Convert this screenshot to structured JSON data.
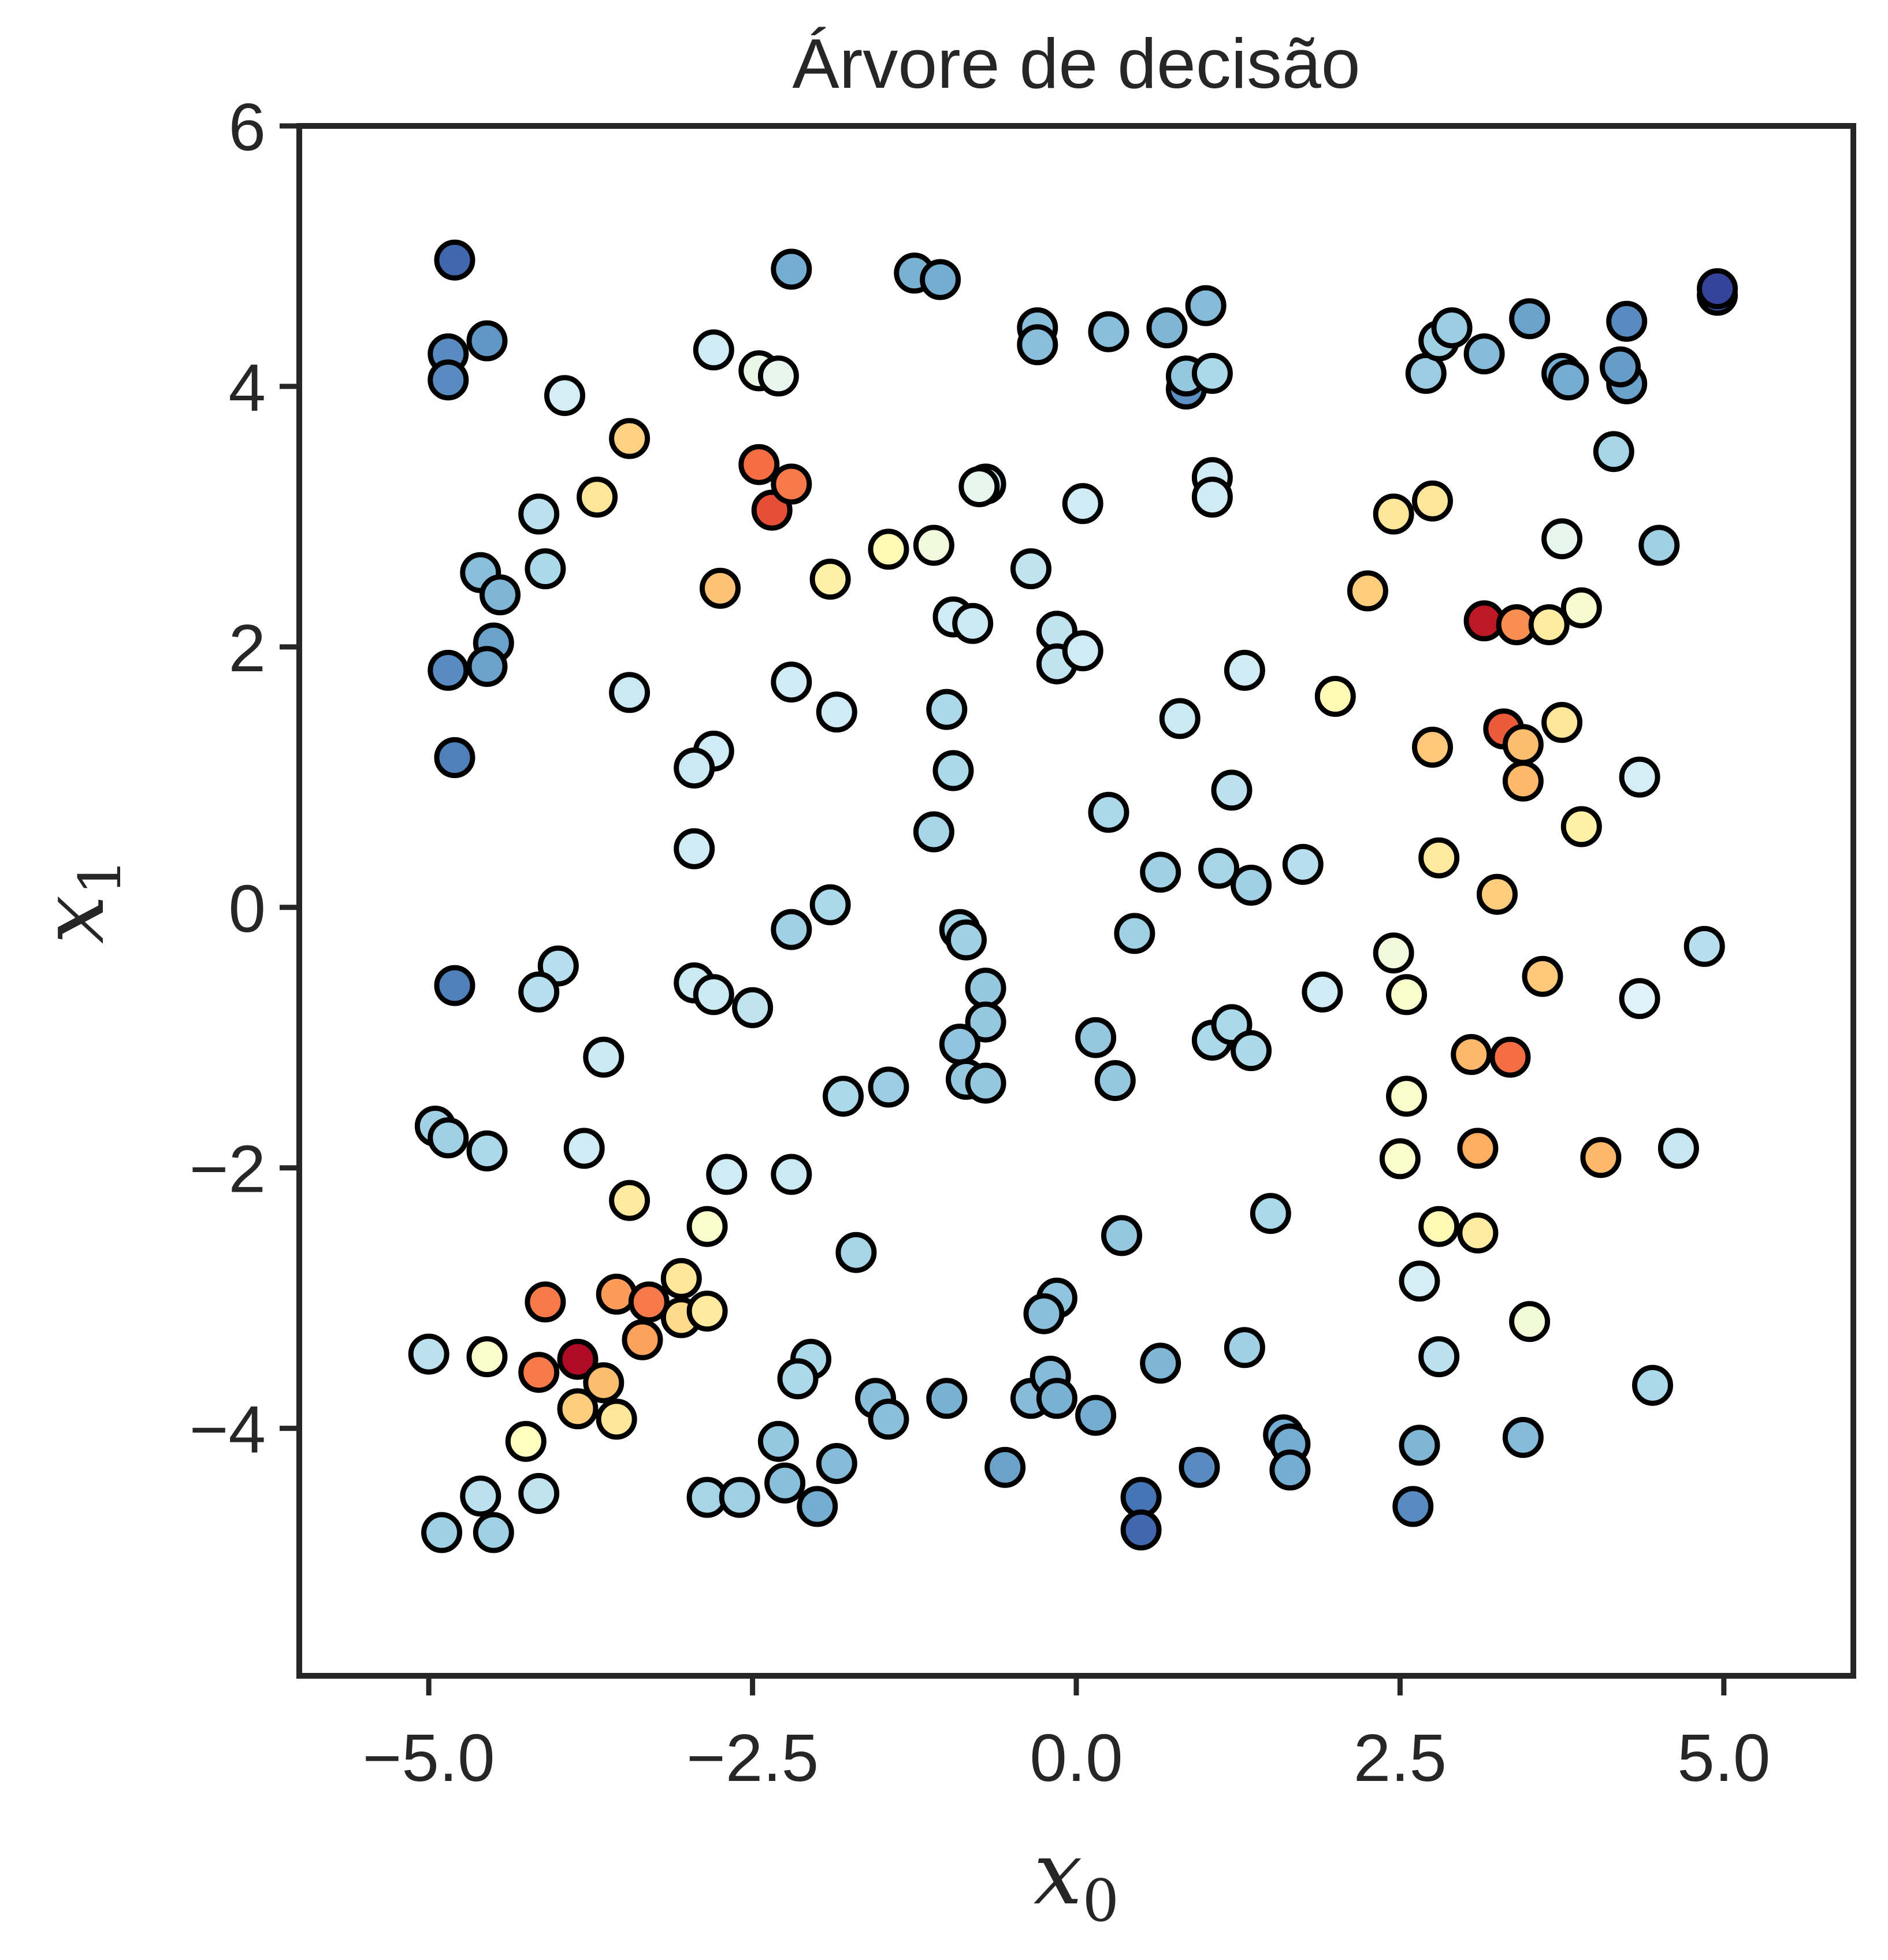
{
  "chart_data": {
    "type": "scatter",
    "title": "Árvore de decisão",
    "xlabel": "x",
    "xlabel_sub": "0",
    "ylabel": "x",
    "ylabel_sub": "1",
    "xlim": [
      -6,
      6
    ],
    "ylim": [
      -5.9,
      6
    ],
    "xticks": [
      -5.0,
      -2.5,
      0.0,
      2.5,
      5.0
    ],
    "yticks": [
      -4,
      -2,
      0,
      2,
      4,
      6
    ],
    "xtick_labels": [
      "−5.0",
      "−2.5",
      "0.0",
      "2.5",
      "5.0"
    ],
    "ytick_labels": [
      "−4",
      "−2",
      "0",
      "2",
      "4",
      "6"
    ],
    "grid": false,
    "colormap": "RdYlBu",
    "colormap_range": [
      0,
      1
    ],
    "colormap_stops": [
      "#a50026",
      "#d73027",
      "#f46d43",
      "#fdae61",
      "#fee090",
      "#ffffbf",
      "#e0f3f8",
      "#abd9e9",
      "#74add1",
      "#4575b4",
      "#313695"
    ],
    "marker_edge_color": "#000000",
    "points": [
      [
        -4.8,
        4.97,
        0.92
      ],
      [
        -4.85,
        4.25,
        0.86
      ],
      [
        -4.55,
        4.35,
        0.84
      ],
      [
        -4.85,
        4.05,
        0.86
      ],
      [
        -3.95,
        3.93,
        0.62
      ],
      [
        -3.45,
        3.6,
        0.37
      ],
      [
        -3.7,
        3.15,
        0.42
      ],
      [
        -4.15,
        3.02,
        0.67
      ],
      [
        -4.6,
        2.57,
        0.76
      ],
      [
        -4.45,
        2.4,
        0.78
      ],
      [
        -4.1,
        2.6,
        0.7
      ],
      [
        -4.5,
        2.03,
        0.82
      ],
      [
        -4.55,
        1.85,
        0.82
      ],
      [
        -4.85,
        1.82,
        0.86
      ],
      [
        -4.8,
        1.15,
        0.88
      ],
      [
        -3.45,
        1.65,
        0.64
      ],
      [
        -2.8,
        4.28,
        0.63
      ],
      [
        -2.45,
        4.12,
        0.57
      ],
      [
        -2.3,
        4.08,
        0.58
      ],
      [
        -2.2,
        4.9,
        0.8
      ],
      [
        -2.45,
        3.4,
        0.2
      ],
      [
        -2.35,
        3.05,
        0.15
      ],
      [
        -2.2,
        3.25,
        0.22
      ],
      [
        -2.75,
        2.45,
        0.34
      ],
      [
        -1.9,
        2.52,
        0.45
      ],
      [
        -1.45,
        2.75,
        0.48
      ],
      [
        -1.1,
        2.78,
        0.55
      ],
      [
        -2.2,
        1.73,
        0.63
      ],
      [
        -1.85,
        1.5,
        0.63
      ],
      [
        -2.8,
        1.2,
        0.63
      ],
      [
        -2.95,
        1.07,
        0.64
      ],
      [
        -2.95,
        0.45,
        0.63
      ],
      [
        -1.25,
        4.87,
        0.79
      ],
      [
        -1.05,
        4.82,
        0.8
      ],
      [
        -0.7,
        3.25,
        0.64
      ],
      [
        -0.75,
        3.23,
        0.58
      ],
      [
        -0.95,
        2.23,
        0.63
      ],
      [
        -0.8,
        2.18,
        0.64
      ],
      [
        -1.0,
        1.52,
        0.7
      ],
      [
        -0.95,
        1.05,
        0.7
      ],
      [
        -1.1,
        0.58,
        0.71
      ],
      [
        -0.3,
        4.45,
        0.76
      ],
      [
        -0.3,
        4.32,
        0.76
      ],
      [
        0.25,
        4.42,
        0.76
      ],
      [
        0.7,
        4.45,
        0.78
      ],
      [
        1.0,
        4.62,
        0.77
      ],
      [
        0.85,
        3.98,
        0.85
      ],
      [
        0.85,
        4.08,
        0.74
      ],
      [
        1.05,
        4.1,
        0.7
      ],
      [
        1.05,
        3.3,
        0.63
      ],
      [
        1.05,
        3.15,
        0.63
      ],
      [
        0.05,
        3.1,
        0.63
      ],
      [
        -0.35,
        2.6,
        0.66
      ],
      [
        -0.15,
        2.12,
        0.66
      ],
      [
        -0.15,
        1.87,
        0.66
      ],
      [
        0.05,
        1.97,
        0.63
      ],
      [
        0.8,
        1.45,
        0.64
      ],
      [
        1.3,
        1.82,
        0.63
      ],
      [
        1.2,
        0.9,
        0.67
      ],
      [
        0.25,
        0.73,
        0.7
      ],
      [
        0.65,
        0.27,
        0.72
      ],
      [
        1.1,
        0.3,
        0.71
      ],
      [
        1.35,
        0.17,
        0.72
      ],
      [
        1.75,
        0.33,
        0.68
      ],
      [
        -1.9,
        0.02,
        0.7
      ],
      [
        -2.2,
        -0.17,
        0.72
      ],
      [
        -0.9,
        -0.17,
        0.72
      ],
      [
        -0.85,
        -0.25,
        0.72
      ],
      [
        -0.7,
        -0.62,
        0.74
      ],
      [
        -0.7,
        -0.88,
        0.74
      ],
      [
        -0.9,
        -1.05,
        0.75
      ],
      [
        -0.85,
        -1.32,
        0.74
      ],
      [
        -0.7,
        -1.35,
        0.74
      ],
      [
        -2.95,
        -0.58,
        0.64
      ],
      [
        -2.8,
        -0.67,
        0.64
      ],
      [
        -2.5,
        -0.77,
        0.66
      ],
      [
        -1.8,
        -1.45,
        0.7
      ],
      [
        -1.45,
        -1.38,
        0.73
      ],
      [
        -2.2,
        -2.05,
        0.64
      ],
      [
        -2.7,
        -2.05,
        0.63
      ],
      [
        -4.0,
        -0.45,
        0.68
      ],
      [
        -4.15,
        -0.65,
        0.68
      ],
      [
        -4.8,
        -0.6,
        0.88
      ],
      [
        -3.65,
        -1.15,
        0.64
      ],
      [
        -3.8,
        -1.85,
        0.63
      ],
      [
        -4.95,
        -1.68,
        0.72
      ],
      [
        -4.85,
        -1.77,
        0.72
      ],
      [
        -4.55,
        -1.87,
        0.7
      ],
      [
        -3.45,
        -2.25,
        0.43
      ],
      [
        -2.85,
        -2.45,
        0.52
      ],
      [
        -1.7,
        -2.65,
        0.71
      ],
      [
        -3.05,
        -2.85,
        0.42
      ],
      [
        -3.05,
        -3.15,
        0.39
      ],
      [
        -2.85,
        -3.1,
        0.43
      ],
      [
        -3.55,
        -2.97,
        0.27
      ],
      [
        -3.3,
        -3.03,
        0.22
      ],
      [
        -4.1,
        -3.03,
        0.22
      ],
      [
        -3.35,
        -3.32,
        0.28
      ],
      [
        -3.85,
        -3.47,
        0.02
      ],
      [
        -3.65,
        -3.65,
        0.33
      ],
      [
        -4.15,
        -3.57,
        0.22
      ],
      [
        -3.85,
        -3.85,
        0.36
      ],
      [
        -3.55,
        -3.93,
        0.42
      ],
      [
        -4.55,
        -3.45,
        0.52
      ],
      [
        -5.0,
        -3.43,
        0.67
      ],
      [
        -4.25,
        -4.1,
        0.5
      ],
      [
        -4.15,
        -4.5,
        0.66
      ],
      [
        -4.6,
        -4.52,
        0.67
      ],
      [
        -4.9,
        -4.8,
        0.72
      ],
      [
        -4.5,
        -4.8,
        0.72
      ],
      [
        -2.85,
        -4.53,
        0.71
      ],
      [
        -2.6,
        -4.53,
        0.72
      ],
      [
        -2.05,
        -3.47,
        0.7
      ],
      [
        -2.15,
        -3.62,
        0.7
      ],
      [
        -2.3,
        -4.1,
        0.74
      ],
      [
        -2.25,
        -4.42,
        0.76
      ],
      [
        -2.0,
        -4.6,
        0.8
      ],
      [
        -1.85,
        -4.27,
        0.77
      ],
      [
        -1.55,
        -3.77,
        0.76
      ],
      [
        -1.45,
        -3.93,
        0.76
      ],
      [
        -1.0,
        -3.77,
        0.79
      ],
      [
        -0.55,
        -4.3,
        0.82
      ],
      [
        -0.35,
        -3.77,
        0.77
      ],
      [
        -0.2,
        -3.6,
        0.77
      ],
      [
        -0.15,
        -3.0,
        0.75
      ],
      [
        -0.25,
        -3.12,
        0.76
      ],
      [
        -0.15,
        -3.77,
        0.79
      ],
      [
        0.15,
        -3.9,
        0.8
      ],
      [
        0.15,
        -1.0,
        0.74
      ],
      [
        0.3,
        -1.33,
        0.74
      ],
      [
        0.45,
        -0.2,
        0.72
      ],
      [
        0.35,
        -2.52,
        0.74
      ],
      [
        0.65,
        -3.5,
        0.78
      ],
      [
        0.5,
        -4.53,
        0.9
      ],
      [
        0.5,
        -4.78,
        0.92
      ],
      [
        0.95,
        -4.3,
        0.86
      ],
      [
        1.05,
        -1.02,
        0.7
      ],
      [
        1.2,
        -0.9,
        0.7
      ],
      [
        1.35,
        -1.1,
        0.7
      ],
      [
        1.9,
        -0.65,
        0.63
      ],
      [
        1.5,
        -2.35,
        0.7
      ],
      [
        1.3,
        -3.38,
        0.72
      ],
      [
        1.6,
        -4.05,
        0.8
      ],
      [
        1.65,
        -4.12,
        0.8
      ],
      [
        1.65,
        -4.32,
        0.8
      ],
      [
        2.6,
        -4.6,
        0.86
      ],
      [
        2.65,
        -4.13,
        0.78
      ],
      [
        2.8,
        -3.45,
        0.67
      ],
      [
        2.65,
        -2.87,
        0.62
      ],
      [
        2.8,
        -2.45,
        0.48
      ],
      [
        3.1,
        -2.5,
        0.44
      ],
      [
        3.5,
        -3.18,
        0.54
      ],
      [
        3.45,
        -4.07,
        0.77
      ],
      [
        4.45,
        -3.67,
        0.7
      ],
      [
        4.65,
        -1.85,
        0.65
      ],
      [
        4.05,
        -1.92,
        0.32
      ],
      [
        3.1,
        -1.85,
        0.3
      ],
      [
        3.05,
        -1.13,
        0.32
      ],
      [
        3.35,
        -1.15,
        0.2
      ],
      [
        2.5,
        -1.93,
        0.52
      ],
      [
        2.55,
        -1.45,
        0.52
      ],
      [
        2.55,
        -0.67,
        0.52
      ],
      [
        2.45,
        -0.35,
        0.55
      ],
      [
        3.6,
        -0.53,
        0.35
      ],
      [
        4.35,
        -0.7,
        0.6
      ],
      [
        4.85,
        -0.3,
        0.68
      ],
      [
        2.8,
        0.38,
        0.43
      ],
      [
        3.25,
        0.1,
        0.36
      ],
      [
        3.9,
        0.62,
        0.45
      ],
      [
        4.35,
        1.0,
        0.62
      ],
      [
        2.75,
        1.23,
        0.35
      ],
      [
        3.3,
        1.37,
        0.17
      ],
      [
        3.45,
        1.25,
        0.33
      ],
      [
        3.45,
        0.97,
        0.32
      ],
      [
        3.75,
        1.42,
        0.42
      ],
      [
        2.0,
        1.62,
        0.48
      ],
      [
        2.25,
        2.43,
        0.36
      ],
      [
        3.15,
        2.2,
        0.05
      ],
      [
        3.4,
        2.17,
        0.25
      ],
      [
        3.65,
        2.17,
        0.44
      ],
      [
        3.9,
        2.3,
        0.53
      ],
      [
        3.75,
        2.83,
        0.58
      ],
      [
        4.5,
        2.78,
        0.72
      ],
      [
        2.45,
        3.02,
        0.42
      ],
      [
        2.75,
        3.12,
        0.42
      ],
      [
        2.7,
        4.1,
        0.73
      ],
      [
        2.8,
        4.35,
        0.72
      ],
      [
        2.9,
        4.45,
        0.73
      ],
      [
        3.15,
        4.25,
        0.77
      ],
      [
        3.5,
        4.52,
        0.82
      ],
      [
        3.75,
        4.1,
        0.8
      ],
      [
        3.8,
        4.05,
        0.8
      ],
      [
        4.15,
        3.5,
        0.71
      ],
      [
        4.25,
        4.02,
        0.82
      ],
      [
        4.25,
        4.5,
        0.86
      ],
      [
        4.2,
        4.15,
        0.83
      ],
      [
        4.95,
        4.7,
        0.96
      ],
      [
        4.95,
        4.75,
        0.98
      ]
    ]
  }
}
